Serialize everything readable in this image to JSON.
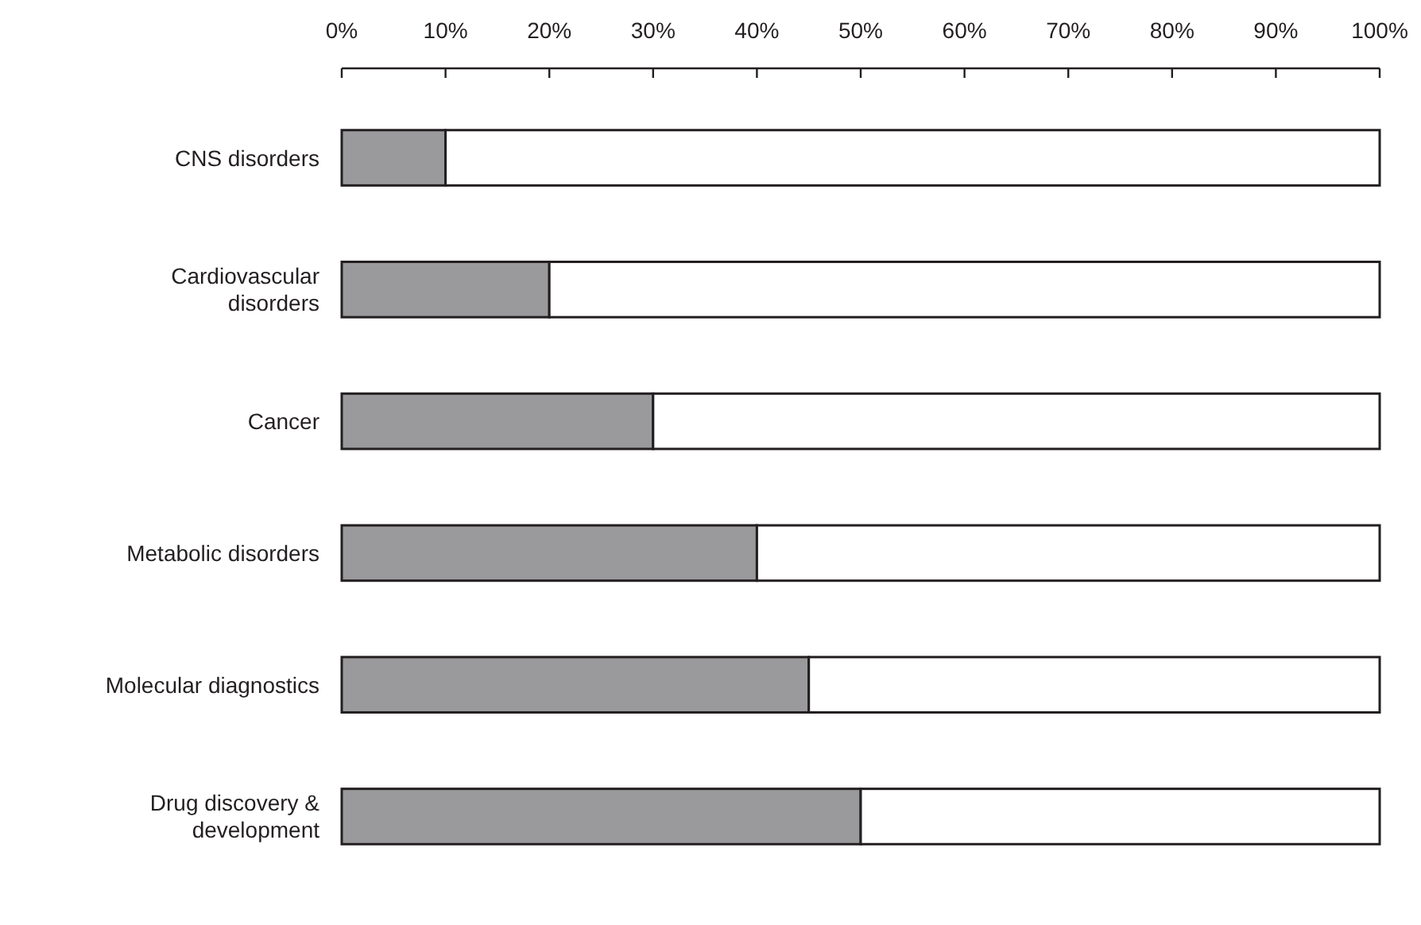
{
  "chart_data": {
    "type": "bar",
    "orientation": "horizontal",
    "stacked": true,
    "categories": [
      "CNS disorders",
      "Cardiovascular disorders",
      "Cancer",
      "Metabolic disorders",
      "Molecular diagnostics",
      "Drug discovery & development"
    ],
    "series": [
      {
        "color": "#9a9a9c",
        "values": [
          10,
          20,
          30,
          40,
          45,
          50
        ]
      },
      {
        "color": "#ffffff",
        "values": [
          90,
          80,
          70,
          60,
          55,
          50
        ]
      }
    ],
    "xlim": [
      0,
      100
    ],
    "xticks": [
      {
        "value": 0,
        "label": "0%"
      },
      {
        "value": 10,
        "label": "10%"
      },
      {
        "value": 20,
        "label": "20%"
      },
      {
        "value": 30,
        "label": "30%"
      },
      {
        "value": 40,
        "label": "40%"
      },
      {
        "value": 50,
        "label": "50%"
      },
      {
        "value": 60,
        "label": "60%"
      },
      {
        "value": 70,
        "label": "70%"
      },
      {
        "value": 80,
        "label": "80%"
      },
      {
        "value": 90,
        "label": "90%"
      },
      {
        "value": 100,
        "label": "100%"
      }
    ],
    "grid": false
  }
}
